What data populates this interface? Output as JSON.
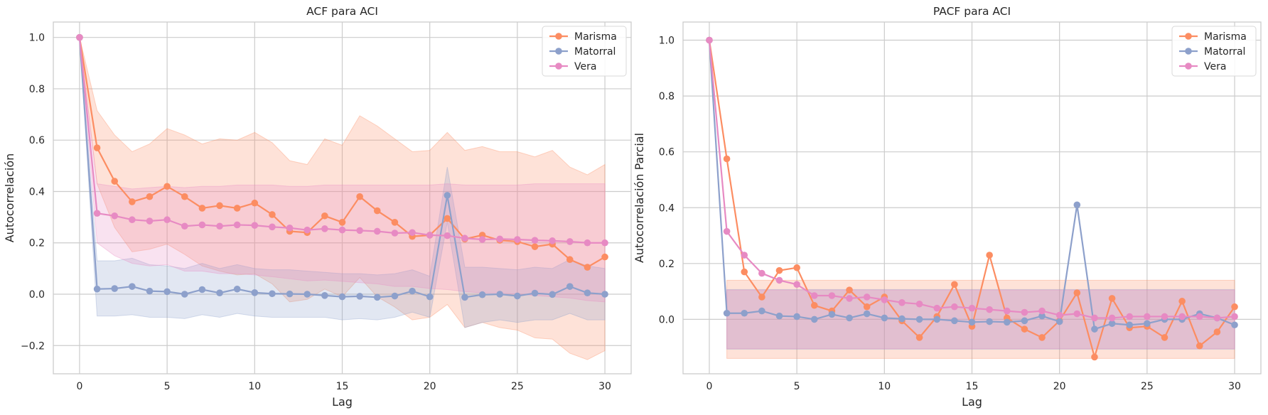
{
  "chart_data": [
    {
      "type": "line",
      "title": "ACF para ACI",
      "xlabel": "Lag",
      "ylabel": "Autocorrelación",
      "xlim": [
        -1.5,
        31.5
      ],
      "ylim": [
        -0.31,
        1.06
      ],
      "xticks": [
        "0",
        "5",
        "10",
        "15",
        "20",
        "25",
        "30"
      ],
      "yticks": [
        "−0.2",
        "0.0",
        "0.2",
        "0.4",
        "0.6",
        "0.8",
        "1.0"
      ],
      "grid": true,
      "legend_position": "top-right",
      "x": [
        0,
        1,
        2,
        3,
        4,
        5,
        6,
        7,
        8,
        9,
        10,
        11,
        12,
        13,
        14,
        15,
        16,
        17,
        18,
        19,
        20,
        21,
        22,
        23,
        24,
        25,
        26,
        27,
        28,
        29,
        30
      ],
      "series": [
        {
          "name": "Marisma",
          "color": "#fc8d62",
          "values": [
            1.0,
            0.57,
            0.44,
            0.36,
            0.38,
            0.42,
            0.38,
            0.335,
            0.345,
            0.335,
            0.355,
            0.31,
            0.245,
            0.24,
            0.305,
            0.28,
            0.38,
            0.325,
            0.28,
            0.225,
            0.23,
            0.295,
            0.215,
            0.23,
            0.21,
            0.205,
            0.185,
            0.195,
            0.135,
            0.105,
            0.145
          ],
          "band_lower": [
            1.0,
            0.43,
            0.26,
            0.165,
            0.175,
            0.195,
            0.155,
            0.11,
            0.09,
            0.075,
            0.08,
            0.04,
            -0.03,
            -0.02,
            0.02,
            -0.01,
            0.065,
            -0.01,
            -0.05,
            -0.1,
            -0.09,
            -0.04,
            -0.13,
            -0.11,
            -0.13,
            -0.14,
            -0.17,
            -0.175,
            -0.23,
            -0.255,
            -0.22
          ],
          "band_upper": [
            1.0,
            0.715,
            0.62,
            0.555,
            0.585,
            0.645,
            0.62,
            0.585,
            0.605,
            0.6,
            0.63,
            0.59,
            0.52,
            0.505,
            0.605,
            0.58,
            0.695,
            0.655,
            0.605,
            0.555,
            0.56,
            0.63,
            0.56,
            0.575,
            0.555,
            0.555,
            0.535,
            0.56,
            0.495,
            0.465,
            0.505
          ]
        },
        {
          "name": "Matorral",
          "color": "#8da0cb",
          "values": [
            1.0,
            0.02,
            0.022,
            0.03,
            0.012,
            0.01,
            0.0,
            0.018,
            0.005,
            0.02,
            0.006,
            0.002,
            0.001,
            0.0,
            -0.005,
            -0.01,
            -0.008,
            -0.012,
            -0.007,
            0.012,
            -0.01,
            0.385,
            -0.012,
            -0.002,
            0.0,
            -0.007,
            0.004,
            -0.001,
            0.03,
            0.005,
            0.0
          ],
          "band_lower": [
            1.0,
            -0.085,
            -0.085,
            -0.08,
            -0.09,
            -0.09,
            -0.095,
            -0.08,
            -0.09,
            -0.075,
            -0.085,
            -0.09,
            -0.09,
            -0.09,
            -0.09,
            -0.1,
            -0.095,
            -0.1,
            -0.09,
            -0.07,
            -0.09,
            0.28,
            -0.13,
            -0.11,
            -0.1,
            -0.11,
            -0.1,
            -0.1,
            -0.075,
            -0.1,
            -0.1
          ],
          "band_upper": [
            1.0,
            0.13,
            0.13,
            0.14,
            0.115,
            0.11,
            0.1,
            0.12,
            0.1,
            0.115,
            0.1,
            0.095,
            0.095,
            0.09,
            0.085,
            0.08,
            0.08,
            0.075,
            0.08,
            0.095,
            0.07,
            0.495,
            0.105,
            0.105,
            0.1,
            0.095,
            0.105,
            0.1,
            0.135,
            0.11,
            0.1
          ]
        },
        {
          "name": "Vera",
          "color": "#e78ac3",
          "values": [
            1.0,
            0.315,
            0.305,
            0.29,
            0.285,
            0.29,
            0.265,
            0.27,
            0.265,
            0.27,
            0.268,
            0.262,
            0.258,
            0.25,
            0.255,
            0.25,
            0.248,
            0.245,
            0.238,
            0.24,
            0.23,
            0.228,
            0.218,
            0.213,
            0.215,
            0.213,
            0.21,
            0.208,
            0.205,
            0.2,
            0.2
          ],
          "band_lower": [
            1.0,
            0.2,
            0.15,
            0.12,
            0.11,
            0.115,
            0.09,
            0.09,
            0.08,
            0.08,
            0.075,
            0.068,
            0.06,
            0.052,
            0.055,
            0.05,
            0.045,
            0.04,
            0.03,
            0.03,
            0.022,
            0.018,
            0.01,
            0.005,
            0.005,
            0.0,
            -0.005,
            -0.01,
            -0.015,
            -0.025,
            -0.03
          ],
          "band_upper": [
            1.0,
            0.43,
            0.42,
            0.41,
            0.415,
            0.42,
            0.415,
            0.42,
            0.42,
            0.425,
            0.425,
            0.425,
            0.42,
            0.42,
            0.425,
            0.425,
            0.425,
            0.425,
            0.425,
            0.425,
            0.425,
            0.43,
            0.425,
            0.425,
            0.425,
            0.425,
            0.43,
            0.43,
            0.43,
            0.43,
            0.43
          ]
        }
      ]
    },
    {
      "type": "line",
      "title": "PACF para ACI",
      "xlabel": "Lag",
      "ylabel": "Autocorrelación Parcial",
      "xlim": [
        -1.5,
        31.5
      ],
      "ylim": [
        -0.195,
        1.065
      ],
      "xticks": [
        "0",
        "5",
        "10",
        "15",
        "20",
        "25",
        "30"
      ],
      "yticks": [
        "0.0",
        "0.2",
        "0.4",
        "0.6",
        "0.8",
        "1.0"
      ],
      "grid": true,
      "legend_position": "top-right",
      "x": [
        0,
        1,
        2,
        3,
        4,
        5,
        6,
        7,
        8,
        9,
        10,
        11,
        12,
        13,
        14,
        15,
        16,
        17,
        18,
        19,
        20,
        21,
        22,
        23,
        24,
        25,
        26,
        27,
        28,
        29,
        30
      ],
      "series": [
        {
          "name": "Marisma",
          "color": "#fc8d62",
          "values": [
            1.0,
            0.575,
            0.17,
            0.08,
            0.175,
            0.185,
            0.05,
            0.03,
            0.105,
            0.045,
            0.08,
            -0.005,
            -0.065,
            0.01,
            0.125,
            -0.025,
            0.23,
            0.005,
            -0.035,
            -0.065,
            -0.005,
            0.095,
            -0.135,
            0.075,
            -0.03,
            -0.025,
            -0.065,
            0.065,
            -0.095,
            -0.045,
            0.045
          ],
          "band_from": 1,
          "band_lower": -0.14,
          "band_upper": 0.14
        },
        {
          "name": "Matorral",
          "color": "#8da0cb",
          "values": [
            1.0,
            0.022,
            0.022,
            0.03,
            0.012,
            0.01,
            0.0,
            0.018,
            0.005,
            0.02,
            0.005,
            0.002,
            0.0,
            0.0,
            -0.005,
            -0.01,
            -0.008,
            -0.01,
            -0.005,
            0.012,
            -0.008,
            0.41,
            -0.035,
            -0.015,
            -0.02,
            -0.015,
            0.0,
            0.0,
            0.02,
            0.005,
            -0.02
          ],
          "band_from": 1,
          "band_lower": -0.107,
          "band_upper": 0.107
        },
        {
          "name": "Vera",
          "color": "#e78ac3",
          "values": [
            1.0,
            0.315,
            0.23,
            0.165,
            0.14,
            0.125,
            0.085,
            0.085,
            0.075,
            0.08,
            0.07,
            0.06,
            0.055,
            0.04,
            0.045,
            0.04,
            0.035,
            0.03,
            0.025,
            0.03,
            0.015,
            0.02,
            0.005,
            0.005,
            0.01,
            0.01,
            0.01,
            0.01,
            0.01,
            0.005,
            0.01
          ],
          "band_from": 1,
          "band_lower": -0.105,
          "band_upper": 0.105
        }
      ]
    }
  ]
}
